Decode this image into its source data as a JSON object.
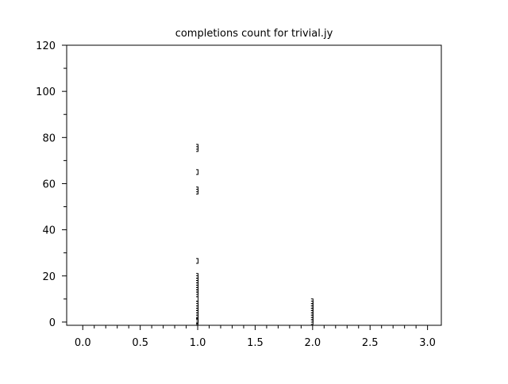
{
  "chart_data": {
    "type": "scatter",
    "title": "completions count for trivial.jy",
    "xlabel": "",
    "ylabel": "",
    "xlim": [
      -0.14,
      3.12
    ],
    "ylim": [
      -1.4,
      120
    ],
    "xticks": [
      0.0,
      0.5,
      1.0,
      1.5,
      2.0,
      2.5,
      3.0
    ],
    "xtick_labels": [
      "0.0",
      "0.5",
      "1.0",
      "1.5",
      "2.0",
      "2.5",
      "3.0"
    ],
    "yticks": [
      0,
      20,
      40,
      60,
      80,
      100,
      120
    ],
    "ytick_labels": [
      "0",
      "20",
      "40",
      "60",
      "80",
      "100",
      "120"
    ],
    "grid": false,
    "marker_color": "#000000",
    "series": [
      {
        "x": [
          1,
          1,
          1,
          1,
          1,
          1,
          1,
          1,
          1,
          1,
          1,
          1,
          1,
          1,
          1,
          1,
          1,
          1,
          1,
          1,
          1,
          1,
          1,
          1,
          1,
          1,
          2,
          2,
          2,
          2,
          2,
          2,
          2,
          2,
          2,
          2
        ],
        "y": [
          76,
          75,
          65,
          57.5,
          56.5,
          26.5,
          20,
          19,
          18,
          17,
          16,
          15,
          14,
          13,
          12,
          10,
          8,
          7,
          6,
          5,
          4,
          3,
          2,
          1,
          0.5,
          0,
          9,
          8,
          7,
          6,
          5,
          4,
          3,
          2,
          1,
          0
        ]
      }
    ]
  }
}
